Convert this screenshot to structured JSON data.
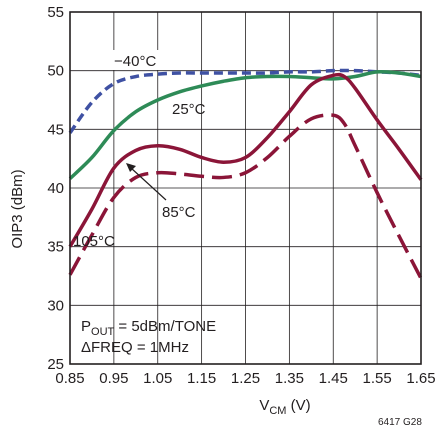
{
  "chart_data": {
    "type": "line",
    "xlabel_main": "V",
    "xlabel_sub": "CM",
    "xlabel_unit": " (V)",
    "ylabel": "OIP3 (dBm)",
    "xlim": [
      0.85,
      1.65
    ],
    "ylim": [
      25,
      55
    ],
    "x_ticks": [
      0.85,
      0.95,
      1.05,
      1.15,
      1.25,
      1.35,
      1.45,
      1.55,
      1.65
    ],
    "x_tick_labels": [
      "0.85",
      "0.95",
      "1.05",
      "1.15",
      "1.25",
      "1.35",
      "1.45",
      "1.55",
      "1.65"
    ],
    "y_ticks": [
      25,
      30,
      35,
      40,
      45,
      50,
      55
    ],
    "y_tick_labels": [
      "25",
      "30",
      "35",
      "40",
      "45",
      "50",
      "55"
    ],
    "grid": true,
    "colors": {
      "grid": "#231f20",
      "blue": "#3f51a3",
      "green": "#2e8b57",
      "red": "#8b1538"
    },
    "series": [
      {
        "name": "−40°C",
        "color": "#3f51a3",
        "dash": "dashed",
        "x": [
          0.85,
          0.9,
          0.95,
          1.0,
          1.05,
          1.1,
          1.15,
          1.2,
          1.25,
          1.3,
          1.35,
          1.4,
          1.45,
          1.5,
          1.55,
          1.6,
          1.65
        ],
        "y": [
          44.7,
          47.3,
          48.9,
          49.5,
          49.7,
          49.8,
          49.8,
          49.8,
          49.8,
          49.8,
          49.9,
          49.9,
          50.0,
          50.0,
          49.9,
          49.8,
          49.6
        ]
      },
      {
        "name": "25°C",
        "color": "#2e8b57",
        "dash": "solid",
        "x": [
          0.85,
          0.9,
          0.95,
          1.0,
          1.05,
          1.1,
          1.15,
          1.2,
          1.25,
          1.3,
          1.35,
          1.4,
          1.45,
          1.5,
          1.55,
          1.6,
          1.65
        ],
        "y": [
          40.8,
          42.6,
          44.9,
          46.5,
          47.5,
          48.2,
          48.7,
          49.1,
          49.4,
          49.5,
          49.5,
          49.4,
          49.3,
          49.5,
          49.9,
          49.8,
          49.5
        ]
      },
      {
        "name": "85°C",
        "color": "#8b1538",
        "dash": "solid",
        "x": [
          0.85,
          0.9,
          0.95,
          1.0,
          1.05,
          1.1,
          1.15,
          1.2,
          1.25,
          1.3,
          1.35,
          1.4,
          1.45,
          1.475,
          1.5,
          1.55,
          1.6,
          1.65
        ],
        "y": [
          35.0,
          38.2,
          41.7,
          43.2,
          43.6,
          43.3,
          42.6,
          42.2,
          42.6,
          44.3,
          46.5,
          48.8,
          49.6,
          49.5,
          48.5,
          45.8,
          43.3,
          40.7
        ]
      },
      {
        "name": "105°C",
        "color": "#8b1538",
        "dash": "longdash",
        "x": [
          0.85,
          0.9,
          0.95,
          1.0,
          1.05,
          1.1,
          1.15,
          1.2,
          1.25,
          1.3,
          1.35,
          1.4,
          1.45,
          1.475,
          1.5,
          1.55,
          1.6,
          1.65
        ],
        "y": [
          32.6,
          36.0,
          39.2,
          40.9,
          41.3,
          41.2,
          41.0,
          40.9,
          41.3,
          42.6,
          44.4,
          45.9,
          46.2,
          45.5,
          43.6,
          39.6,
          35.9,
          32.3
        ]
      }
    ],
    "annotations": {
      "label_m40": "−40°C",
      "label_25": "25°C",
      "label_85": "85°C",
      "label_105": "105°C",
      "pout_main": "P",
      "pout_sub": "OUT",
      "pout_rest": " = 5dBm/TONE",
      "dfreq": "ΔFREQ = 1MHz",
      "figure_id": "6417 G28"
    }
  }
}
